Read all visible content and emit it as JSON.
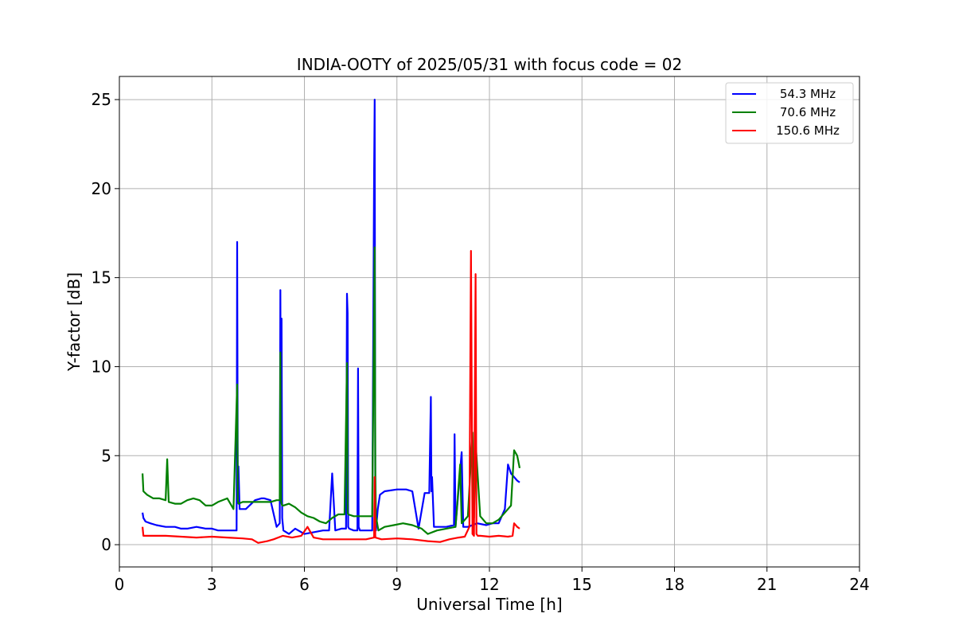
{
  "chart_data": {
    "type": "line",
    "title": "INDIA-OOTY of 2025/05/31 with focus code = 02",
    "xlabel": "Universal Time [h]",
    "ylabel": "Y-factor [dB]",
    "xlim": [
      0,
      24
    ],
    "ylim": [
      -1.25,
      26.3
    ],
    "xticks": [
      0,
      3,
      6,
      9,
      12,
      15,
      18,
      21,
      24
    ],
    "xtick_labels": [
      "0",
      "3",
      "6",
      "9",
      "12",
      "15",
      "18",
      "21",
      "24"
    ],
    "yticks": [
      0,
      5,
      10,
      15,
      20,
      25
    ],
    "ytick_labels": [
      "0",
      "5",
      "10",
      "15",
      "20",
      "25"
    ],
    "grid": true,
    "legend_position": "top-right",
    "series": [
      {
        "name": "54.3 MHz",
        "color": "#0000ff",
        "x": [
          0.75,
          0.78,
          0.85,
          1.0,
          1.2,
          1.5,
          1.8,
          2.0,
          2.2,
          2.5,
          2.8,
          3.0,
          3.2,
          3.5,
          3.8,
          3.82,
          3.84,
          3.86,
          3.9,
          4.1,
          4.4,
          4.6,
          4.7,
          4.9,
          5.1,
          5.2,
          5.22,
          5.24,
          5.26,
          5.28,
          5.32,
          5.5,
          5.7,
          6.0,
          6.3,
          6.6,
          6.8,
          6.9,
          7.0,
          7.2,
          7.35,
          7.38,
          7.4,
          7.42,
          7.45,
          7.6,
          7.72,
          7.74,
          7.76,
          7.8,
          8.0,
          8.2,
          8.26,
          8.28,
          8.3,
          8.32,
          8.38,
          8.45,
          8.6,
          9.0,
          9.3,
          9.5,
          9.7,
          9.9,
          10.05,
          10.1,
          10.12,
          10.14,
          10.2,
          10.4,
          10.6,
          10.85,
          10.87,
          10.9,
          11.1,
          11.15,
          11.3,
          11.6,
          11.9,
          12.1,
          12.3,
          12.5,
          12.6,
          12.7,
          12.8,
          12.9,
          12.98
        ],
        "y": [
          1.8,
          1.5,
          1.3,
          1.2,
          1.1,
          1.0,
          1.0,
          0.9,
          0.9,
          1.0,
          0.9,
          0.9,
          0.8,
          0.8,
          0.8,
          17.0,
          3.0,
          4.4,
          2.0,
          2.0,
          2.5,
          2.6,
          2.6,
          2.5,
          1.0,
          1.2,
          14.3,
          3.0,
          12.7,
          1.5,
          0.8,
          0.6,
          0.9,
          0.6,
          0.7,
          0.8,
          0.8,
          4.0,
          0.8,
          0.9,
          0.9,
          14.1,
          13.0,
          1.0,
          0.9,
          0.8,
          0.8,
          9.9,
          1.0,
          0.8,
          0.8,
          0.8,
          21.0,
          25.0,
          2.0,
          0.8,
          2.0,
          2.8,
          3.0,
          3.1,
          3.1,
          3.0,
          0.9,
          2.9,
          2.9,
          8.3,
          3.0,
          3.8,
          1.0,
          1.0,
          1.0,
          1.1,
          6.2,
          1.0,
          5.2,
          1.0,
          1.0,
          1.2,
          1.1,
          1.2,
          1.2,
          2.0,
          4.5,
          4.0,
          3.8,
          3.6,
          3.5
        ]
      },
      {
        "name": "70.6 MHz",
        "color": "#008000",
        "x": [
          0.75,
          0.78,
          0.9,
          1.1,
          1.3,
          1.5,
          1.55,
          1.6,
          1.8,
          2.0,
          2.2,
          2.4,
          2.6,
          2.8,
          3.0,
          3.2,
          3.5,
          3.7,
          3.82,
          3.84,
          3.86,
          4.0,
          4.3,
          4.6,
          4.9,
          5.1,
          5.2,
          5.22,
          5.24,
          5.26,
          5.28,
          5.32,
          5.5,
          5.7,
          5.9,
          6.1,
          6.3,
          6.5,
          6.7,
          6.9,
          7.1,
          7.3,
          7.38,
          7.4,
          7.42,
          7.6,
          7.8,
          8.0,
          8.2,
          8.28,
          8.3,
          8.32,
          8.4,
          8.6,
          8.9,
          9.2,
          9.5,
          9.8,
          10.0,
          10.3,
          10.6,
          10.9,
          11.05,
          11.1,
          11.15,
          11.3,
          11.45,
          11.5,
          11.55,
          11.7,
          11.9,
          12.1,
          12.3,
          12.5,
          12.6,
          12.7,
          12.8,
          12.9,
          12.98
        ],
        "y": [
          4.0,
          3.0,
          2.8,
          2.6,
          2.6,
          2.5,
          4.8,
          2.4,
          2.3,
          2.3,
          2.5,
          2.6,
          2.5,
          2.2,
          2.2,
          2.4,
          2.6,
          2.0,
          9.0,
          2.5,
          2.3,
          2.4,
          2.4,
          2.4,
          2.4,
          2.5,
          2.5,
          10.8,
          2.5,
          2.3,
          2.2,
          2.2,
          2.3,
          2.1,
          1.8,
          1.6,
          1.5,
          1.3,
          1.2,
          1.5,
          1.7,
          1.7,
          10.2,
          1.8,
          1.7,
          1.6,
          1.6,
          1.6,
          1.6,
          16.7,
          4.0,
          1.6,
          0.8,
          1.0,
          1.1,
          1.2,
          1.1,
          0.9,
          0.6,
          0.8,
          0.9,
          1.0,
          4.5,
          1.2,
          1.3,
          1.6,
          6.3,
          1.5,
          5.8,
          1.6,
          1.2,
          1.2,
          1.4,
          1.8,
          2.0,
          2.2,
          5.3,
          5.0,
          4.3
        ]
      },
      {
        "name": "150.6 MHz",
        "color": "#ff0000",
        "x": [
          0.75,
          0.78,
          1.0,
          1.5,
          2.0,
          2.5,
          3.0,
          3.5,
          4.0,
          4.3,
          4.5,
          4.8,
          5.0,
          5.3,
          5.6,
          5.9,
          6.1,
          6.3,
          6.6,
          7.0,
          7.5,
          8.0,
          8.26,
          8.28,
          8.3,
          8.5,
          9.0,
          9.5,
          10.0,
          10.4,
          10.7,
          11.0,
          11.2,
          11.35,
          11.4,
          11.45,
          11.5,
          11.55,
          11.58,
          11.62,
          11.7,
          12.0,
          12.3,
          12.6,
          12.75,
          12.8,
          12.9,
          12.98
        ],
        "y": [
          1.0,
          0.5,
          0.5,
          0.5,
          0.45,
          0.4,
          0.45,
          0.4,
          0.35,
          0.3,
          0.1,
          0.2,
          0.3,
          0.5,
          0.4,
          0.5,
          1.0,
          0.4,
          0.3,
          0.3,
          0.3,
          0.3,
          0.4,
          3.8,
          0.4,
          0.3,
          0.35,
          0.3,
          0.2,
          0.15,
          0.3,
          0.4,
          0.45,
          1.0,
          16.5,
          0.6,
          0.5,
          15.2,
          0.6,
          0.5,
          0.5,
          0.45,
          0.5,
          0.45,
          0.5,
          1.2,
          1.0,
          0.9
        ]
      }
    ]
  }
}
